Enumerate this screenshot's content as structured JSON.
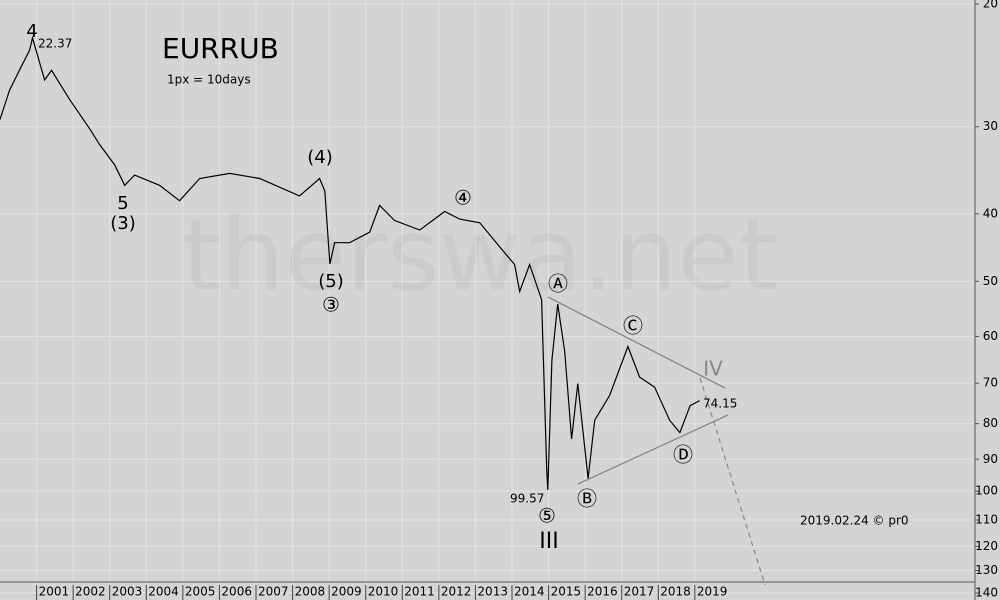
{
  "chart_data": {
    "type": "line",
    "title": "EURRUB",
    "subtitle": "1px = 10days",
    "watermark": "therswa.net",
    "footer": "2019.02.24 © pr0",
    "color": "#000000",
    "ylog": true,
    "yinverted": true,
    "yaxis": "right",
    "grid": true,
    "xlim": [
      2000,
      2026.66
    ],
    "xticks": [
      2001,
      2002,
      2003,
      2004,
      2005,
      2006,
      2007,
      2008,
      2009,
      2010,
      2011,
      2012,
      2013,
      2014,
      2015,
      2016,
      2017,
      2018,
      2019
    ],
    "ylim": [
      20,
      140
    ],
    "yticks": [
      20,
      30,
      40,
      50,
      60,
      70,
      80,
      90,
      100,
      110,
      120,
      130,
      140
    ],
    "x": [
      2000.0,
      2000.26,
      2000.53,
      2000.81,
      2000.89,
      2001.22,
      2001.41,
      2001.9,
      2002.45,
      2002.72,
      2003.13,
      2003.41,
      2003.68,
      2004.36,
      2004.91,
      2005.46,
      2006.28,
      2007.1,
      2008.19,
      2008.74,
      2008.88,
      2009.02,
      2009.15,
      2009.56,
      2010.11,
      2010.38,
      2010.79,
      2011.48,
      2012.16,
      2012.57,
      2013.12,
      2013.66,
      2014.07,
      2014.21,
      2014.48,
      2014.81,
      2014.95,
      2014.98,
      2015.09,
      2015.25,
      2015.44,
      2015.63,
      2015.8,
      2016.08,
      2016.26,
      2016.67,
      2017.17,
      2017.49,
      2017.9,
      2018.31,
      2018.59,
      2018.87,
      2019.13
    ],
    "values": [
      29.3,
      26.6,
      24.9,
      23.3,
      22.37,
      25.7,
      24.9,
      27.4,
      30.2,
      31.8,
      34.0,
      36.4,
      35.2,
      36.4,
      38.3,
      35.6,
      35.0,
      35.6,
      37.7,
      35.6,
      37.1,
      47.2,
      44.0,
      44.0,
      42.5,
      38.9,
      40.9,
      42.2,
      39.7,
      40.7,
      41.2,
      44.6,
      47.3,
      51.7,
      47.3,
      53.1,
      93.0,
      99.57,
      64.9,
      53.9,
      63.0,
      84.2,
      70.1,
      95.9,
      79.1,
      72.9,
      62.0,
      68.6,
      70.9,
      79.1,
      82.4,
      75.4,
      74.15
    ],
    "annotations": [
      "4",
      "22.37",
      "5",
      "(3)",
      "(4)",
      "(5)",
      "③",
      "④",
      "Ⓐ",
      "Ⓑ",
      "Ⓒ",
      "Ⓓ",
      "⑤",
      "III",
      "99.57",
      "IV",
      "74.15"
    ]
  }
}
